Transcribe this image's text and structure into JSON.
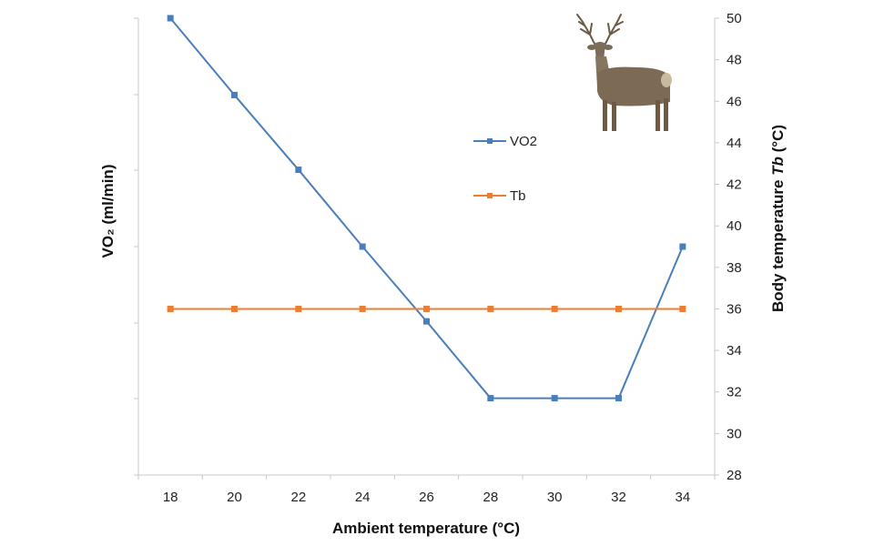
{
  "chart_data": {
    "type": "line",
    "x": [
      18,
      20,
      22,
      24,
      26,
      28,
      30,
      32,
      34
    ],
    "xlabel": "Ambient temperature (°C)",
    "x_tick_labels": [
      "18",
      "20",
      "22",
      "24",
      "26",
      "28",
      "30",
      "32",
      "34"
    ],
    "xlim": [
      17,
      35
    ],
    "ylabel_left": "VO₂ (ml/min)",
    "ylabel_right_prefix": "Body temperature ",
    "ylabel_right_italic": "Tb",
    "ylabel_right_suffix": " (°C)",
    "y_right_tick_labels": [
      "28",
      "30",
      "32",
      "34",
      "36",
      "38",
      "40",
      "42",
      "44",
      "46",
      "48",
      "50"
    ],
    "ylim_right": [
      28,
      50
    ],
    "left_axis_numbers_shown": false,
    "grid": false,
    "legend_position": "center-right",
    "series": [
      {
        "name": "VO2",
        "color": "#4a7ebb",
        "marker": "square",
        "values": [
          50,
          46.3,
          42.7,
          39,
          35.4,
          31.7,
          31.7,
          31.7,
          39
        ]
      },
      {
        "name": "Tb",
        "color": "#ed7d31",
        "marker": "square",
        "values": [
          36,
          36,
          36,
          36,
          36,
          36,
          36,
          36,
          36
        ]
      }
    ]
  },
  "image": {
    "icon": "deer-icon"
  }
}
